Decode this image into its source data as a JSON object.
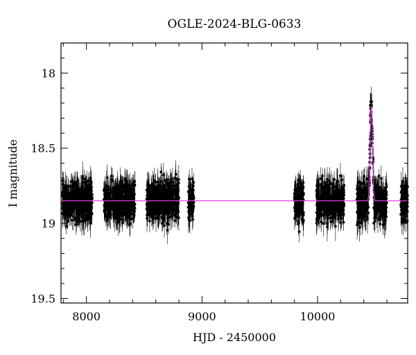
{
  "chart_data": {
    "type": "scatter",
    "title": "OGLE-2024-BLG-0633",
    "xlabel": "HJD - 2450000",
    "ylabel": "I magnitude",
    "xlim": [
      7780,
      10780
    ],
    "ylim": [
      19.53,
      17.8
    ],
    "y_inverted": true,
    "xticks": [
      8000,
      9000,
      10000
    ],
    "yticks": [
      18,
      18.5,
      19,
      19.5
    ],
    "ytick_labels": [
      "18",
      "18.5",
      "19",
      "19.5"
    ],
    "grid": false,
    "legend": "none",
    "colors": {
      "points": "#000000",
      "model": "#e040e0"
    },
    "baseline_mag": 18.85,
    "seasons": [
      {
        "start": 7790,
        "end": 8050
      },
      {
        "start": 8150,
        "end": 8420
      },
      {
        "start": 8520,
        "end": 8800
      },
      {
        "start": 8880,
        "end": 8930
      },
      {
        "start": 9800,
        "end": 9880
      },
      {
        "start": 9990,
        "end": 10230
      },
      {
        "start": 10340,
        "end": 10600
      },
      {
        "start": 10720,
        "end": 10780
      }
    ],
    "model": {
      "t0": 10465,
      "peak_mag": 18.22,
      "tE": 28
    }
  }
}
